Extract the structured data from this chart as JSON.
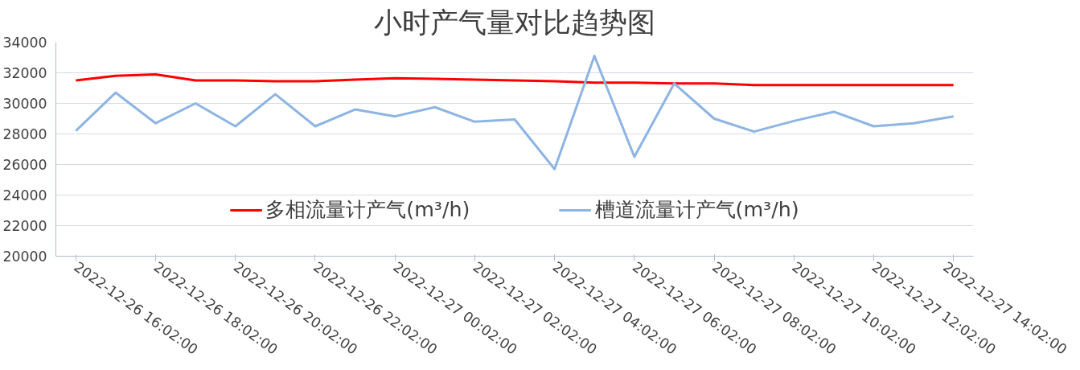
{
  "chart_data": {
    "type": "line",
    "title": "小时产气量对比趋势图",
    "categories": [
      "2022-12-26 16:02:00",
      null,
      "2022-12-26 18:02:00",
      null,
      "2022-12-26 20:02:00",
      null,
      "2022-12-26 22:02:00",
      null,
      "2022-12-27 00:02:00",
      null,
      "2022-12-27 02:02:00",
      null,
      "2022-12-27 04:02:00",
      null,
      "2022-12-27 06:02:00",
      null,
      "2022-12-27 08:02:00",
      null,
      "2022-12-27 10:02:00",
      null,
      "2022-12-27 12:02:00",
      null,
      "2022-12-27 14:02:00"
    ],
    "series": [
      {
        "name": "多相流量计产气(m³/h)",
        "color": "#ff0000",
        "values": [
          31500,
          31800,
          31900,
          31500,
          31500,
          31450,
          31450,
          31550,
          31650,
          31600,
          31550,
          31500,
          31450,
          31350,
          31350,
          31300,
          31300,
          31200,
          31200,
          31200,
          31200,
          31200,
          31200
        ]
      },
      {
        "name": "槽道流量计产气(m³/h)",
        "color": "#8eb4e3",
        "values": [
          28200,
          30700,
          28700,
          30000,
          28500,
          30600,
          28500,
          29600,
          29150,
          29750,
          28800,
          28950,
          25700,
          33100,
          26500,
          31300,
          29000,
          28150,
          28850,
          29450,
          28500,
          28700,
          29150
        ]
      }
    ],
    "ylim": [
      20000,
      34000
    ],
    "yticks": [
      20000,
      22000,
      24000,
      26000,
      28000,
      30000,
      32000,
      34000
    ],
    "grid": "y",
    "legend": "bottom",
    "marker": "none",
    "line_style": "solid"
  }
}
